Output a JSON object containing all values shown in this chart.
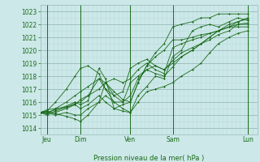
{
  "bg_color": "#cce8e8",
  "grid_major_color": "#99bbbb",
  "grid_minor_color": "#bbdddd",
  "line_color": "#1a6b1a",
  "ylabel": "Pression niveau de la mer( hPa )",
  "yticks": [
    1014,
    1015,
    1016,
    1017,
    1018,
    1019,
    1020,
    1021,
    1022,
    1023
  ],
  "ylim": [
    1013.5,
    1023.5
  ],
  "day_labels": [
    "Jeu",
    "Dim",
    "Ven",
    "Sam",
    "Lun"
  ],
  "day_positions": [
    0.03,
    0.185,
    0.415,
    0.61,
    0.955
  ],
  "day_vline_positions": [
    0.03,
    0.185,
    0.415,
    0.61,
    0.955
  ],
  "series": [
    {
      "x": [
        0.0,
        0.03,
        0.07,
        0.12,
        0.16,
        0.185,
        0.22,
        0.27,
        0.3,
        0.34,
        0.38,
        0.415,
        0.45,
        0.49,
        0.53,
        0.57,
        0.61,
        0.65,
        0.7,
        0.74,
        0.78,
        0.82,
        0.87,
        0.91,
        0.955
      ],
      "y": [
        1015.2,
        1015.2,
        1015.4,
        1015.7,
        1016.0,
        1015.8,
        1016.1,
        1018.6,
        1017.8,
        1015.5,
        1015.3,
        1015.2,
        1016.5,
        1017.2,
        1018.0,
        1017.8,
        1019.5,
        1020.0,
        1021.5,
        1021.8,
        1022.0,
        1021.8,
        1022.2,
        1022.5,
        1022.3
      ]
    },
    {
      "x": [
        0.0,
        0.03,
        0.07,
        0.12,
        0.16,
        0.185,
        0.22,
        0.27,
        0.3,
        0.34,
        0.38,
        0.415,
        0.45,
        0.49,
        0.53,
        0.57,
        0.61,
        0.65,
        0.7,
        0.74,
        0.78,
        0.82,
        0.87,
        0.91,
        0.955
      ],
      "y": [
        1015.2,
        1015.3,
        1015.1,
        1014.9,
        1014.7,
        1014.5,
        1015.0,
        1016.0,
        1017.5,
        1016.5,
        1016.0,
        1017.5,
        1018.0,
        1018.5,
        1018.2,
        1018.0,
        1018.7,
        1019.5,
        1020.0,
        1020.5,
        1021.0,
        1021.5,
        1021.8,
        1022.2,
        1022.5
      ]
    },
    {
      "x": [
        0.0,
        0.03,
        0.07,
        0.12,
        0.16,
        0.185,
        0.22,
        0.27,
        0.3,
        0.34,
        0.38,
        0.415,
        0.45,
        0.49,
        0.53,
        0.57,
        0.61,
        0.65,
        0.7,
        0.74,
        0.78,
        0.82,
        0.87,
        0.91,
        0.955
      ],
      "y": [
        1015.2,
        1015.1,
        1015.3,
        1015.6,
        1015.9,
        1016.0,
        1016.5,
        1017.8,
        1017.0,
        1016.5,
        1016.8,
        1018.6,
        1019.0,
        1019.3,
        1018.8,
        1018.5,
        1019.2,
        1019.8,
        1020.2,
        1020.5,
        1020.8,
        1021.2,
        1021.5,
        1022.0,
        1022.0
      ]
    },
    {
      "x": [
        0.0,
        0.03,
        0.07,
        0.12,
        0.16,
        0.185,
        0.22,
        0.27,
        0.3,
        0.34,
        0.38,
        0.415,
        0.45,
        0.49,
        0.53,
        0.57,
        0.61,
        0.65,
        0.7,
        0.74,
        0.78,
        0.82,
        0.87,
        0.91,
        0.955
      ],
      "y": [
        1015.2,
        1015.4,
        1015.5,
        1015.6,
        1015.8,
        1015.5,
        1015.8,
        1016.5,
        1016.0,
        1015.5,
        1015.8,
        1016.0,
        1017.5,
        1018.8,
        1019.5,
        1020.0,
        1020.8,
        1020.8,
        1021.0,
        1021.2,
        1021.3,
        1021.5,
        1021.8,
        1021.8,
        1021.8
      ]
    },
    {
      "x": [
        0.0,
        0.03,
        0.07,
        0.12,
        0.16,
        0.185,
        0.22,
        0.27,
        0.3,
        0.34,
        0.38,
        0.415,
        0.45,
        0.49,
        0.53,
        0.57,
        0.61,
        0.65,
        0.7,
        0.74,
        0.78,
        0.82,
        0.87,
        0.91,
        0.955
      ],
      "y": [
        1015.2,
        1015.0,
        1015.2,
        1015.5,
        1015.8,
        1016.2,
        1016.5,
        1017.0,
        1017.5,
        1017.8,
        1017.5,
        1017.8,
        1018.5,
        1019.0,
        1018.5,
        1018.2,
        1020.2,
        1020.5,
        1020.8,
        1021.0,
        1021.3,
        1021.5,
        1021.8,
        1022.0,
        1022.1
      ]
    },
    {
      "x": [
        0.0,
        0.03,
        0.07,
        0.12,
        0.16,
        0.185,
        0.22,
        0.27,
        0.3,
        0.34,
        0.38,
        0.415,
        0.45,
        0.49,
        0.53,
        0.57,
        0.61,
        0.65,
        0.7,
        0.74,
        0.78,
        0.82,
        0.87,
        0.91,
        0.955
      ],
      "y": [
        1015.2,
        1015.2,
        1015.0,
        1015.2,
        1015.0,
        1015.0,
        1015.5,
        1016.0,
        1016.5,
        1016.0,
        1016.0,
        1016.5,
        1017.8,
        1018.5,
        1018.8,
        1018.5,
        1019.0,
        1019.5,
        1020.0,
        1020.5,
        1021.0,
        1021.5,
        1022.0,
        1022.2,
        1022.4
      ]
    },
    {
      "x": [
        0.0,
        0.03,
        0.07,
        0.12,
        0.16,
        0.185,
        0.22,
        0.27,
        0.3,
        0.34,
        0.38,
        0.415,
        0.45,
        0.49,
        0.53,
        0.57,
        0.61,
        0.65,
        0.7,
        0.74,
        0.78,
        0.82,
        0.87,
        0.91,
        0.955
      ],
      "y": [
        1015.2,
        1015.3,
        1016.0,
        1017.0,
        1018.0,
        1018.6,
        1018.8,
        1018.2,
        1017.0,
        1016.0,
        1015.5,
        1015.2,
        1016.0,
        1016.8,
        1017.0,
        1017.2,
        1017.5,
        1018.0,
        1018.5,
        1019.0,
        1019.8,
        1020.5,
        1021.0,
        1021.3,
        1021.5
      ]
    },
    {
      "x": [
        0.0,
        0.03,
        0.07,
        0.12,
        0.16,
        0.185,
        0.22,
        0.27,
        0.3,
        0.34,
        0.38,
        0.415,
        0.45,
        0.49,
        0.53,
        0.57,
        0.61,
        0.65,
        0.7,
        0.74,
        0.78,
        0.82,
        0.87,
        0.91,
        0.955
      ],
      "y": [
        1015.2,
        1015.1,
        1015.5,
        1016.0,
        1016.5,
        1016.8,
        1017.2,
        1017.8,
        1017.5,
        1016.8,
        1016.2,
        1016.0,
        1017.5,
        1018.8,
        1019.8,
        1020.5,
        1021.8,
        1022.0,
        1022.2,
        1022.5,
        1022.5,
        1022.8,
        1022.8,
        1022.8,
        1022.8
      ]
    }
  ]
}
